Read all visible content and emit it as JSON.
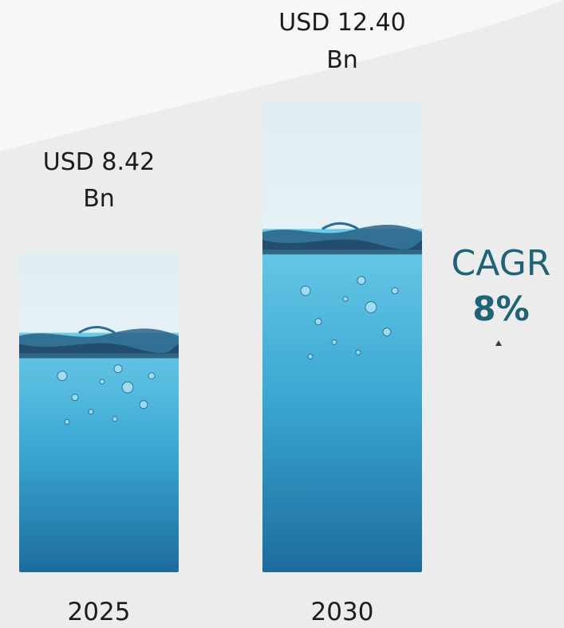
{
  "chart_data": {
    "type": "bar",
    "categories": [
      "2025",
      "2030"
    ],
    "values": [
      8.42,
      12.4
    ],
    "value_labels": [
      {
        "line1": "USD 8.42",
        "line2": "Bn"
      },
      {
        "line1": "USD 12.40",
        "line2": "Bn"
      }
    ],
    "ylim": [
      0,
      12.4
    ],
    "grid": false,
    "legend": "none",
    "bar_style": "water-image",
    "cagr": {
      "label": "CAGR",
      "value": "8%"
    },
    "colors": {
      "water_top": "#5cc3e4",
      "water_bottom": "#1c6c9e",
      "sky": "#f2f6f8",
      "cagr_text": "#1f6377",
      "arrow": "#1e4254"
    }
  }
}
